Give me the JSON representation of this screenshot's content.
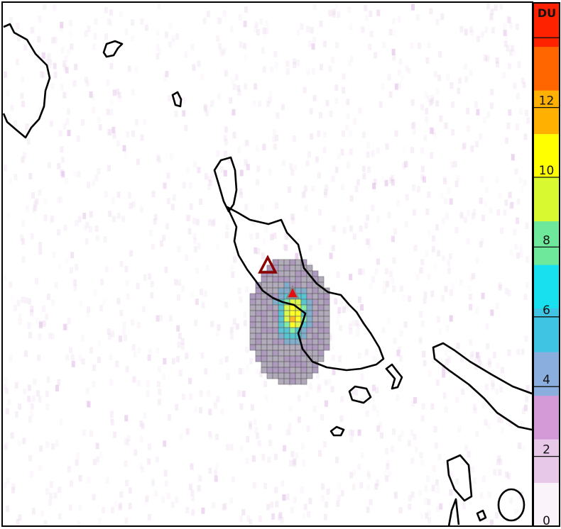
{
  "colorbar": {
    "unit_label": "DU",
    "min": 0,
    "max": 15,
    "ticks": [
      0,
      2,
      4,
      6,
      8,
      10,
      12,
      14
    ],
    "tick_labels": [
      "0",
      "2",
      "4",
      "6",
      "8",
      "10",
      "12",
      ""
    ],
    "colors": [
      "#faf4fa",
      "#e8c8e8",
      "#d49ad8",
      "#8aaede",
      "#40c4e4",
      "#18e0ee",
      "#6ee89a",
      "#d8f830",
      "#ffff00",
      "#ffb000",
      "#ff6600",
      "#ff2200"
    ]
  },
  "markers": [
    {
      "name": "volcano-outline-triangle",
      "style": "outline",
      "color": "#8b0000"
    },
    {
      "name": "volcano-active-triangle",
      "style": "filled",
      "color": "#e01010"
    }
  ],
  "coastline_color": "#000000"
}
